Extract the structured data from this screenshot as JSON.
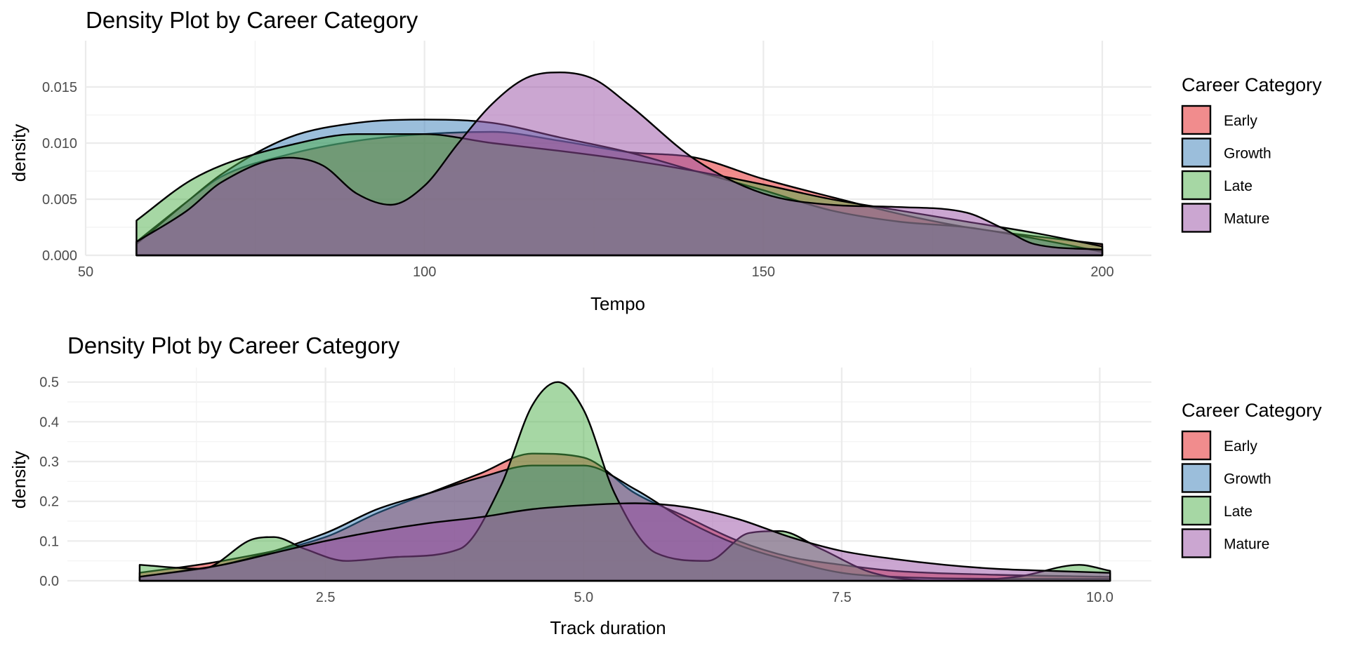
{
  "chart_data": [
    {
      "type": "area",
      "title": "Density Plot by Career Category",
      "xlabel": "Tempo",
      "ylabel": "density",
      "xlim": [
        50,
        200
      ],
      "ylim": [
        0,
        0.0165
      ],
      "x_ticks": [
        50,
        100,
        150,
        200
      ],
      "y_ticks": [
        0.0,
        0.005,
        0.01,
        0.015
      ],
      "y_tick_labels": [
        "0.000",
        "0.005",
        "0.010",
        "0.015"
      ],
      "grid": true,
      "legend": {
        "title": "Career Category",
        "position": "right",
        "entries": [
          "Early",
          "Growth",
          "Late",
          "Mature"
        ]
      },
      "series": [
        {
          "name": "Early",
          "color": "#E41A1C",
          "x": [
            57.5,
            65,
            70,
            80,
            90,
            100,
            110,
            120,
            130,
            140,
            150,
            160,
            170,
            180,
            190,
            200
          ],
          "values": [
            0.0012,
            0.0048,
            0.007,
            0.009,
            0.0102,
            0.0108,
            0.011,
            0.0102,
            0.0092,
            0.0087,
            0.0068,
            0.0052,
            0.0037,
            0.0025,
            0.0017,
            0.001
          ]
        },
        {
          "name": "Growth",
          "color": "#377EB8",
          "x": [
            57.5,
            65,
            70,
            80,
            90,
            100,
            110,
            120,
            130,
            140,
            150,
            160,
            170,
            180,
            190,
            200
          ],
          "values": [
            0.001,
            0.0048,
            0.0072,
            0.0105,
            0.0118,
            0.0121,
            0.0118,
            0.0105,
            0.0092,
            0.0075,
            0.0058,
            0.004,
            0.003,
            0.0025,
            0.0015,
            0.0003
          ]
        },
        {
          "name": "Late",
          "color": "#4DAF4A",
          "x": [
            57.5,
            65,
            70,
            80,
            90,
            100,
            110,
            120,
            130,
            140,
            150,
            160,
            170,
            180,
            190,
            200
          ],
          "values": [
            0.0031,
            0.0065,
            0.008,
            0.0098,
            0.0108,
            0.0108,
            0.01,
            0.0093,
            0.0085,
            0.0075,
            0.0063,
            0.005,
            0.004,
            0.003,
            0.002,
            0.0008
          ]
        },
        {
          "name": "Mature",
          "color": "#984EA3",
          "x": [
            57.5,
            65,
            70,
            80,
            85,
            90,
            95,
            100,
            105,
            110,
            115,
            120,
            125,
            130,
            140,
            150,
            160,
            170,
            180,
            185,
            190,
            200
          ],
          "values": [
            0.0012,
            0.004,
            0.0065,
            0.0087,
            0.008,
            0.0055,
            0.0045,
            0.0062,
            0.01,
            0.0135,
            0.0158,
            0.0163,
            0.0157,
            0.0135,
            0.0085,
            0.0055,
            0.0045,
            0.0043,
            0.0038,
            0.0025,
            0.001,
            0.0005
          ]
        }
      ]
    },
    {
      "type": "area",
      "title": "Density Plot by Career Category",
      "xlabel": "Track duration",
      "ylabel": "density",
      "xlim": [
        0.0,
        10.5
      ],
      "ylim": [
        0,
        0.51
      ],
      "x_ticks": [
        2.5,
        5.0,
        7.5,
        10.0
      ],
      "x_tick_labels": [
        "2.5",
        "5.0",
        "7.5",
        "10.0"
      ],
      "y_ticks": [
        0.0,
        0.1,
        0.2,
        0.3,
        0.4,
        0.5
      ],
      "y_tick_labels": [
        "0.0",
        "0.1",
        "0.2",
        "0.3",
        "0.4",
        "0.5"
      ],
      "grid": true,
      "legend": {
        "title": "Career Category",
        "position": "right",
        "entries": [
          "Early",
          "Growth",
          "Late",
          "Mature"
        ]
      },
      "series": [
        {
          "name": "Early",
          "color": "#E41A1C",
          "x": [
            0.7,
            1.5,
            2.5,
            3.0,
            3.5,
            4.0,
            4.5,
            5.0,
            5.5,
            6.0,
            6.5,
            7.0,
            7.5,
            8.0,
            9.0,
            10.1
          ],
          "values": [
            0.02,
            0.05,
            0.11,
            0.17,
            0.22,
            0.27,
            0.32,
            0.31,
            0.22,
            0.16,
            0.1,
            0.06,
            0.04,
            0.025,
            0.015,
            0.01
          ]
        },
        {
          "name": "Growth",
          "color": "#377EB8",
          "x": [
            0.7,
            1.5,
            2.5,
            3.0,
            3.5,
            4.0,
            4.5,
            5.0,
            5.5,
            6.0,
            6.5,
            7.0,
            7.5,
            8.0,
            9.0,
            10.1
          ],
          "values": [
            0.01,
            0.04,
            0.12,
            0.18,
            0.22,
            0.26,
            0.29,
            0.29,
            0.23,
            0.15,
            0.09,
            0.05,
            0.02,
            0.01,
            0.005,
            0.005
          ]
        },
        {
          "name": "Late",
          "color": "#4DAF4A",
          "x": [
            0.7,
            1.3,
            1.8,
            2.0,
            2.3,
            2.7,
            3.2,
            3.8,
            4.2,
            4.5,
            4.75,
            5.0,
            5.3,
            5.7,
            6.2,
            6.6,
            6.9,
            7.3,
            7.8,
            8.5,
            9.2,
            9.8,
            10.1
          ],
          "values": [
            0.04,
            0.03,
            0.105,
            0.11,
            0.08,
            0.05,
            0.06,
            0.08,
            0.24,
            0.44,
            0.5,
            0.43,
            0.22,
            0.07,
            0.05,
            0.12,
            0.125,
            0.08,
            0.02,
            0.0,
            0.01,
            0.04,
            0.025
          ]
        },
        {
          "name": "Mature",
          "color": "#984EA3",
          "x": [
            0.7,
            1.5,
            2.0,
            2.5,
            3.0,
            3.5,
            4.0,
            4.5,
            5.0,
            5.5,
            6.0,
            6.5,
            7.0,
            7.5,
            8.0,
            8.5,
            9.0,
            9.5,
            10.1
          ],
          "values": [
            0.01,
            0.04,
            0.07,
            0.1,
            0.125,
            0.145,
            0.16,
            0.18,
            0.19,
            0.195,
            0.185,
            0.155,
            0.11,
            0.075,
            0.055,
            0.04,
            0.03,
            0.025,
            0.02
          ]
        }
      ]
    }
  ]
}
